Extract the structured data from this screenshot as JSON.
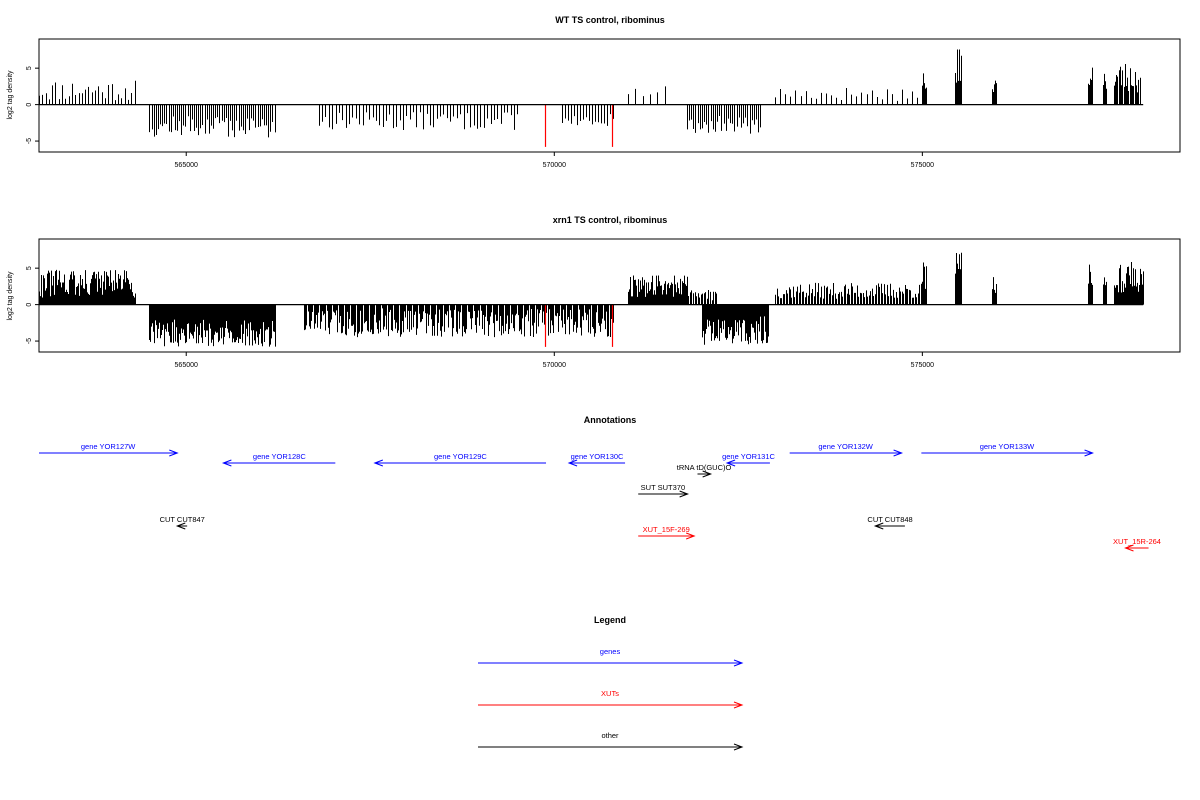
{
  "chart_data": [
    {
      "type": "bar",
      "title": "WT TS control, ribominus",
      "xlabel": "",
      "ylabel": "log2 tag density",
      "xlim": [
        563000,
        578500
      ],
      "ylim": [
        -6.5,
        9
      ],
      "xticks": [
        565000,
        570000,
        575000
      ],
      "xtick_labels": [
        "565000",
        "570000",
        "575000"
      ],
      "yticks": [
        -5,
        0,
        5
      ],
      "ytick_labels": [
        "-5",
        "0",
        "5"
      ],
      "grid": false,
      "segments": [
        {
          "x0": 563000,
          "x1": 564300,
          "lo": 0.5,
          "hi": 3.5,
          "n": 30,
          "seed": 11
        },
        {
          "x0": 564500,
          "x1": 566200,
          "lo": -4.5,
          "hi": -1.5,
          "n": 60,
          "seed": 12
        },
        {
          "x0": 566800,
          "x1": 569500,
          "lo": -3.5,
          "hi": -1.0,
          "n": 60,
          "seed": 13
        },
        {
          "x0": 570100,
          "x1": 570800,
          "lo": -3.0,
          "hi": -1.0,
          "n": 18,
          "seed": 14
        },
        {
          "x0": 571000,
          "x1": 571500,
          "lo": 1.0,
          "hi": 2.8,
          "n": 6,
          "seed": 15
        },
        {
          "x0": 571800,
          "x1": 572800,
          "lo": -4.0,
          "hi": -1.5,
          "n": 35,
          "seed": 16
        },
        {
          "x0": 573000,
          "x1": 575000,
          "lo": 0.5,
          "hi": 2.5,
          "n": 30,
          "seed": 17
        },
        {
          "x0": 575000,
          "x1": 575050,
          "lo": 2.0,
          "hi": 4.5,
          "n": 8,
          "seed": 18
        },
        {
          "x0": 575450,
          "x1": 575530,
          "lo": 3.0,
          "hi": 8.5,
          "n": 10,
          "seed": 19
        },
        {
          "x0": 575950,
          "x1": 576000,
          "lo": 1.5,
          "hi": 4.0,
          "n": 6,
          "seed": 20
        },
        {
          "x0": 577250,
          "x1": 577300,
          "lo": 2.0,
          "hi": 5.5,
          "n": 8,
          "seed": 21
        },
        {
          "x0": 577450,
          "x1": 577500,
          "lo": 2.0,
          "hi": 4.5,
          "n": 6,
          "seed": 22
        },
        {
          "x0": 577600,
          "x1": 577950,
          "lo": 1.5,
          "hi": 6.0,
          "n": 22,
          "seed": 23
        }
      ],
      "red_bars": [
        {
          "x": 569880,
          "y": -5.8
        },
        {
          "x": 570780,
          "y": -5.8
        }
      ],
      "baseline": [
        563000,
        578000
      ]
    },
    {
      "type": "bar",
      "title": "xrn1 TS control, ribominus",
      "xlabel": "",
      "ylabel": "log2 tag density",
      "xlim": [
        563000,
        578500
      ],
      "ylim": [
        -6.5,
        9
      ],
      "xticks": [
        565000,
        570000,
        575000
      ],
      "xtick_labels": [
        "565000",
        "570000",
        "575000"
      ],
      "yticks": [
        -5,
        0,
        5
      ],
      "ytick_labels": [
        "-5",
        "0",
        "5"
      ],
      "grid": false,
      "segments": [
        {
          "x0": 563000,
          "x1": 564300,
          "lo": 0.8,
          "hi": 4.8,
          "n": 120,
          "seed": 31
        },
        {
          "x0": 564500,
          "x1": 566200,
          "lo": -5.8,
          "hi": -2.0,
          "n": 160,
          "seed": 32
        },
        {
          "x0": 566600,
          "x1": 570800,
          "lo": -4.5,
          "hi": -0.5,
          "n": 260,
          "seed": 33
        },
        {
          "x0": 571000,
          "x1": 571800,
          "lo": 1.0,
          "hi": 4.0,
          "n": 70,
          "seed": 34
        },
        {
          "x0": 571800,
          "x1": 572200,
          "lo": 0.5,
          "hi": 2.0,
          "n": 20,
          "seed": 35
        },
        {
          "x0": 572000,
          "x1": 572900,
          "lo": -5.5,
          "hi": -1.5,
          "n": 70,
          "seed": 36
        },
        {
          "x0": 573000,
          "x1": 575000,
          "lo": 0.8,
          "hi": 3.0,
          "n": 100,
          "seed": 37
        },
        {
          "x0": 575000,
          "x1": 575050,
          "lo": 2.0,
          "hi": 6.5,
          "n": 8,
          "seed": 38
        },
        {
          "x0": 575450,
          "x1": 575530,
          "lo": 3.0,
          "hi": 8.0,
          "n": 10,
          "seed": 39
        },
        {
          "x0": 575950,
          "x1": 576000,
          "lo": 1.5,
          "hi": 4.0,
          "n": 6,
          "seed": 40
        },
        {
          "x0": 577250,
          "x1": 577300,
          "lo": 2.0,
          "hi": 5.5,
          "n": 8,
          "seed": 41
        },
        {
          "x0": 577450,
          "x1": 577500,
          "lo": 2.0,
          "hi": 5.0,
          "n": 6,
          "seed": 42
        },
        {
          "x0": 577600,
          "x1": 578000,
          "lo": 1.5,
          "hi": 6.0,
          "n": 30,
          "seed": 43
        }
      ],
      "red_bars": [
        {
          "x": 569880,
          "y": -5.8
        },
        {
          "x": 570780,
          "y": -5.8
        }
      ],
      "baseline": [
        563000,
        578000
      ]
    }
  ],
  "annotations_title": "Annotations",
  "annotation_xlim": [
    561700,
    578800
  ],
  "annotations": [
    {
      "label": "gene YOR127W",
      "start": 561700,
      "end": 563800,
      "strand": "+",
      "color": "#0000ff",
      "row": 0
    },
    {
      "label": "gene YOR128C",
      "start": 564500,
      "end": 566200,
      "strand": "-",
      "color": "#0000ff",
      "row": 1
    },
    {
      "label": "gene YOR129C",
      "start": 566800,
      "end": 569400,
      "strand": "-",
      "color": "#0000ff",
      "row": 1
    },
    {
      "label": "gene YOR130C",
      "start": 569750,
      "end": 570600,
      "strand": "-",
      "color": "#0000ff",
      "row": 1
    },
    {
      "label": "gene YOR131C",
      "start": 572150,
      "end": 572800,
      "strand": "-",
      "color": "#0000ff",
      "row": 1
    },
    {
      "label": "gene YOR132W",
      "start": 573100,
      "end": 574800,
      "strand": "+",
      "color": "#0000ff",
      "row": 0
    },
    {
      "label": "gene YOR133W",
      "start": 575100,
      "end": 577700,
      "strand": "+",
      "color": "#0000ff",
      "row": 0
    },
    {
      "label": "tRNA tD(GUC)O",
      "start": 571700,
      "end": 571900,
      "strand": "+",
      "color": "#000000",
      "row": 2
    },
    {
      "label": "SUT SUT370",
      "start": 570800,
      "end": 571550,
      "strand": "+",
      "color": "#000000",
      "row": 3
    },
    {
      "label": "CUT CUT847",
      "start": 563800,
      "end": 563950,
      "strand": "-",
      "color": "#000000",
      "row": 4
    },
    {
      "label": "CUT CUT848",
      "start": 574400,
      "end": 574850,
      "strand": "-",
      "color": "#000000",
      "row": 4
    },
    {
      "label": "XUT_15F-269",
      "start": 570800,
      "end": 571650,
      "strand": "+",
      "color": "#ff0000",
      "row": 5
    },
    {
      "label": "XUT_15R-264",
      "start": 578200,
      "end": 578550,
      "strand": "-",
      "color": "#ff0000",
      "row": 6
    }
  ],
  "legend_title": "Legend",
  "legend": [
    {
      "label": "genes",
      "color": "#0000ff"
    },
    {
      "label": "XUTs",
      "color": "#ff0000"
    },
    {
      "label": "other",
      "color": "#000000"
    }
  ]
}
